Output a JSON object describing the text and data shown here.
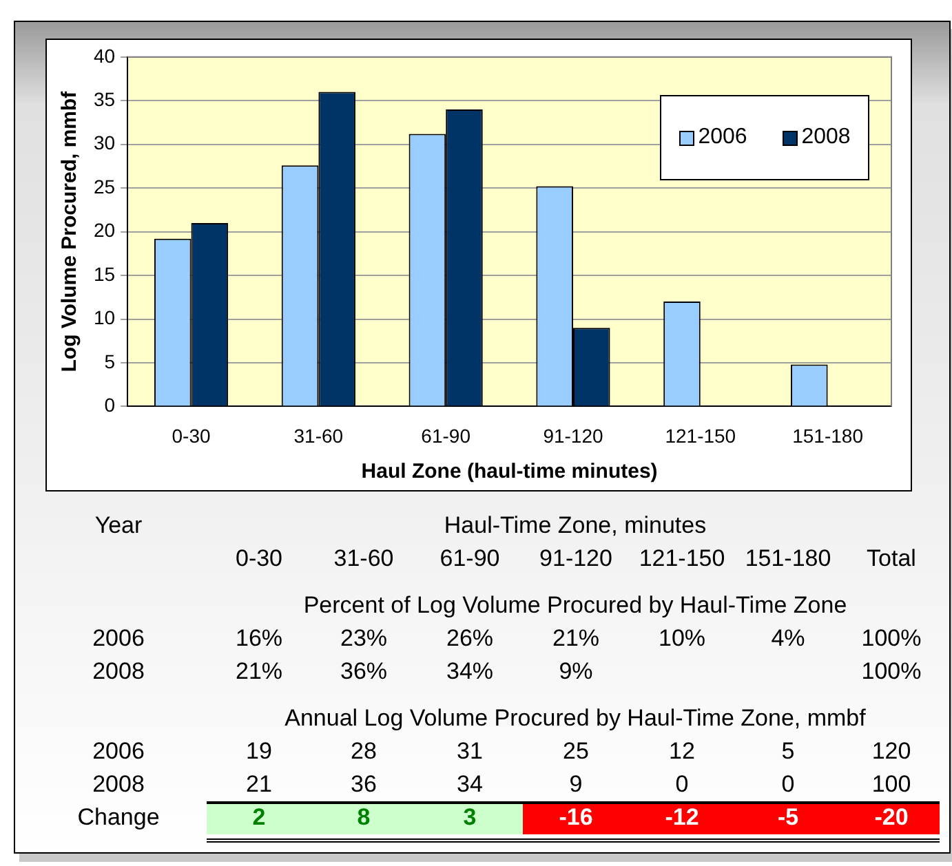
{
  "chart_data": [
    {
      "type": "bar",
      "xlabel": "Haul Zone (haul-time minutes)",
      "ylabel": "Log Volume Procured, mmbf",
      "categories": [
        "0-30",
        "31-60",
        "61-90",
        "91-120",
        "121-150",
        "151-180"
      ],
      "series": [
        {
          "name": "2006",
          "color": "#99ccff",
          "values": [
            19.2,
            27.6,
            31.2,
            25.2,
            12,
            4.8
          ]
        },
        {
          "name": "2008",
          "color": "#003366",
          "values": [
            21,
            36,
            34,
            9,
            0,
            0
          ]
        }
      ],
      "ylim": [
        0,
        40
      ],
      "yticks": [
        0,
        5,
        10,
        15,
        20,
        25,
        30,
        35,
        40
      ],
      "grid": "y",
      "legend": "top right"
    },
    {
      "type": "heatmap",
      "title": "Haul-Time Zone, minutes",
      "subtitle": "Percent of Log Volume Procured by Haul-Time Zone",
      "annotations": [
        "Year",
        "Annual Log Volume Procured by Haul-Time Zone, mmbf"
      ],
      "categories": [
        "0-30",
        "31-60",
        "61-90",
        "91-120",
        "121-150",
        "151-180",
        "Total"
      ],
      "y_categories": [
        "2006",
        "2008",
        "2006",
        "2008",
        "Change"
      ],
      "cells": [
        [
          16,
          23,
          26,
          21,
          10,
          4,
          100
        ],
        [
          21,
          36,
          34,
          9,
          null,
          null,
          100
        ],
        [
          19,
          28,
          31,
          25,
          12,
          5,
          120
        ],
        [
          21,
          36,
          34,
          9,
          0,
          0,
          100
        ],
        [
          2,
          8,
          3,
          -16,
          -12,
          -5,
          -20
        ]
      ],
      "cell_labels": [
        [
          "16%",
          "23%",
          "26%",
          "21%",
          "10%",
          "4%",
          "100%"
        ],
        [
          "21%",
          "36%",
          "34%",
          "9%",
          null,
          null,
          "100%"
        ],
        [
          "19",
          "28",
          "31",
          "25",
          "12",
          "5",
          "120"
        ],
        [
          "21",
          "36",
          "34",
          "9",
          "0",
          "0",
          "100"
        ],
        [
          "2",
          "8",
          "3",
          "-16",
          "-12",
          "-5",
          "-20"
        ]
      ]
    }
  ]
}
